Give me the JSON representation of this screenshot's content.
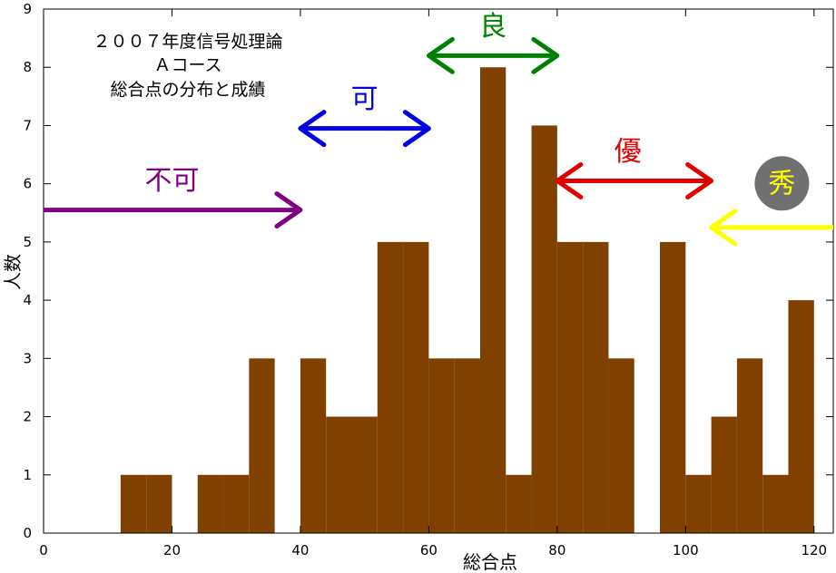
{
  "chart_data": {
    "type": "bar",
    "title_lines": [
      "２００７年度信号処理論",
      "Ａコース",
      "総合点の分布と成績"
    ],
    "xlabel": "総合点",
    "ylabel": "人数",
    "xlim": [
      0,
      123
    ],
    "ylim": [
      0,
      9
    ],
    "x_ticks": [
      0,
      20,
      40,
      60,
      80,
      100,
      120
    ],
    "y_ticks": [
      0,
      1,
      2,
      3,
      4,
      5,
      6,
      7,
      8,
      9
    ],
    "bin_width": 4,
    "bars": [
      {
        "start": 12,
        "value": 1
      },
      {
        "start": 16,
        "value": 1
      },
      {
        "start": 20,
        "value": 0
      },
      {
        "start": 24,
        "value": 1
      },
      {
        "start": 28,
        "value": 1
      },
      {
        "start": 32,
        "value": 3
      },
      {
        "start": 36,
        "value": 0
      },
      {
        "start": 40,
        "value": 3
      },
      {
        "start": 44,
        "value": 2
      },
      {
        "start": 48,
        "value": 2
      },
      {
        "start": 52,
        "value": 5
      },
      {
        "start": 56,
        "value": 5
      },
      {
        "start": 60,
        "value": 3
      },
      {
        "start": 64,
        "value": 3
      },
      {
        "start": 68,
        "value": 8
      },
      {
        "start": 72,
        "value": 1
      },
      {
        "start": 76,
        "value": 7
      },
      {
        "start": 80,
        "value": 5
      },
      {
        "start": 84,
        "value": 5
      },
      {
        "start": 88,
        "value": 3
      },
      {
        "start": 92,
        "value": 0
      },
      {
        "start": 96,
        "value": 5
      },
      {
        "start": 100,
        "value": 1
      },
      {
        "start": 104,
        "value": 2
      },
      {
        "start": 108,
        "value": 3
      },
      {
        "start": 112,
        "value": 1
      },
      {
        "start": 116,
        "value": 4
      }
    ],
    "bar_color": "#804000",
    "grades": [
      {
        "label": "不可",
        "color": "#800080",
        "x_from": 0,
        "x_to": 40,
        "y": 5.55,
        "both_heads": false,
        "label_x": 20,
        "label_y": 5.9
      },
      {
        "label": "可",
        "color": "#0000e0",
        "x_from": 40,
        "x_to": 60,
        "y": 6.95,
        "both_heads": true,
        "label_x": 50,
        "label_y": 7.3
      },
      {
        "label": "良",
        "color": "#008000",
        "x_from": 60,
        "x_to": 80,
        "y": 8.2,
        "both_heads": true,
        "label_x": 70,
        "label_y": 8.55
      },
      {
        "label": "優",
        "color": "#e00000",
        "x_from": 80,
        "x_to": 104,
        "y": 6.05,
        "both_heads": true,
        "label_x": 91,
        "label_y": 6.4
      },
      {
        "label": "秀",
        "color": "#ffff00",
        "x_from": 123,
        "x_to": 104,
        "y": 5.25,
        "both_heads": false,
        "label_x": 115,
        "label_y": 5.85,
        "badge": true,
        "badge_color": "#707070"
      }
    ]
  }
}
